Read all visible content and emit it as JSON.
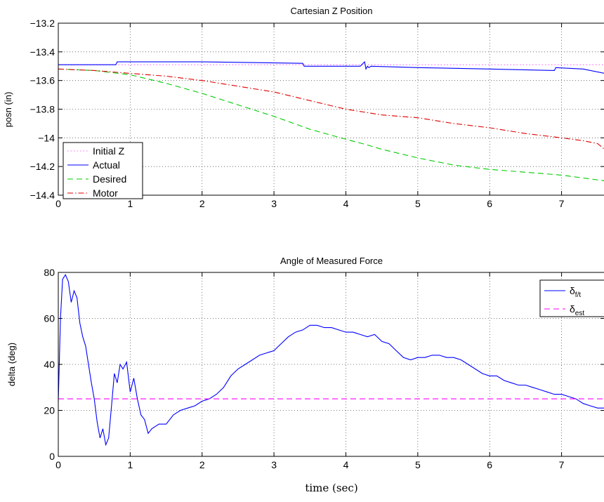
{
  "chart_data": [
    {
      "type": "line",
      "title": "Cartesian Z Position",
      "xlabel": "",
      "ylabel": "posn (in)",
      "xlim": [
        0,
        7.6
      ],
      "ylim": [
        -14.4,
        -13.2
      ],
      "xticks": [
        0,
        1,
        2,
        3,
        4,
        5,
        6,
        7
      ],
      "yticks": [
        -14.4,
        -14.2,
        -14,
        -13.8,
        -13.6,
        -13.4,
        -13.2
      ],
      "ytick_labels": [
        "−14.4",
        "−14.2",
        "−14",
        "−13.8",
        "−13.6",
        "−13.4",
        "−13.2"
      ],
      "grid": true,
      "legend": "bottom-left",
      "series": [
        {
          "name": "Initial Z",
          "color": "#ff66ff",
          "style": "dotted",
          "x": [
            0,
            7.6
          ],
          "y": [
            -13.49,
            -13.49
          ]
        },
        {
          "name": "Actual",
          "color": "#0000ff",
          "style": "solid",
          "x": [
            0,
            0.8,
            0.82,
            2.0,
            3.4,
            3.42,
            4.2,
            4.26,
            4.28,
            4.3,
            4.32,
            4.35,
            5.0,
            6.0,
            6.9,
            6.92,
            7.3,
            7.6
          ],
          "y": [
            -13.49,
            -13.49,
            -13.47,
            -13.47,
            -13.48,
            -13.5,
            -13.5,
            -13.47,
            -13.52,
            -13.5,
            -13.51,
            -13.5,
            -13.51,
            -13.52,
            -13.53,
            -13.51,
            -13.52,
            -13.55
          ]
        },
        {
          "name": "Desired",
          "color": "#00cc00",
          "style": "dashed",
          "x": [
            0,
            0.5,
            1.0,
            1.5,
            2.0,
            2.5,
            3.0,
            3.5,
            4.0,
            4.3,
            4.5,
            5.0,
            5.5,
            6.0,
            6.5,
            7.0,
            7.6
          ],
          "y": [
            -13.52,
            -13.53,
            -13.56,
            -13.62,
            -13.69,
            -13.77,
            -13.85,
            -13.94,
            -14.01,
            -14.05,
            -14.08,
            -14.14,
            -14.19,
            -14.22,
            -14.24,
            -14.26,
            -14.3
          ]
        },
        {
          "name": "Motor",
          "color": "#dd0000",
          "style": "dashdot",
          "x": [
            0,
            0.5,
            1.0,
            1.5,
            2.0,
            2.5,
            3.0,
            3.5,
            4.0,
            4.5,
            5.0,
            5.5,
            6.0,
            6.5,
            7.0,
            7.3,
            7.5,
            7.6
          ],
          "y": [
            -13.52,
            -13.53,
            -13.55,
            -13.57,
            -13.6,
            -13.64,
            -13.68,
            -13.74,
            -13.8,
            -13.84,
            -13.86,
            -13.9,
            -13.93,
            -13.97,
            -14.0,
            -14.02,
            -14.04,
            -14.08
          ]
        }
      ]
    },
    {
      "type": "line",
      "title": "Angle of Measured Force",
      "xlabel": "time (sec)",
      "ylabel": "delta (deg)",
      "xlim": [
        0,
        7.6
      ],
      "ylim": [
        0,
        80
      ],
      "xticks": [
        0,
        1,
        2,
        3,
        4,
        5,
        6,
        7
      ],
      "yticks": [
        0,
        20,
        40,
        60,
        80
      ],
      "ytick_labels": [
        "0",
        "20",
        "40",
        "60",
        "80"
      ],
      "grid": true,
      "legend": "top-right",
      "series": [
        {
          "name": "δf/t",
          "label_main": "δ",
          "label_sub": "f/t",
          "color": "#0000ff",
          "style": "solid",
          "x": [
            0,
            0.03,
            0.06,
            0.1,
            0.14,
            0.18,
            0.22,
            0.26,
            0.3,
            0.34,
            0.38,
            0.42,
            0.46,
            0.5,
            0.54,
            0.58,
            0.62,
            0.66,
            0.7,
            0.74,
            0.78,
            0.82,
            0.86,
            0.9,
            0.95,
            1.0,
            1.05,
            1.1,
            1.15,
            1.2,
            1.25,
            1.3,
            1.4,
            1.5,
            1.6,
            1.7,
            1.8,
            1.9,
            2.0,
            2.1,
            2.2,
            2.3,
            2.4,
            2.5,
            2.6,
            2.7,
            2.8,
            2.9,
            3.0,
            3.1,
            3.2,
            3.3,
            3.4,
            3.5,
            3.6,
            3.7,
            3.8,
            3.9,
            4.0,
            4.1,
            4.2,
            4.3,
            4.4,
            4.5,
            4.6,
            4.7,
            4.8,
            4.9,
            5.0,
            5.1,
            5.2,
            5.3,
            5.4,
            5.5,
            5.6,
            5.7,
            5.8,
            5.9,
            6.0,
            6.1,
            6.2,
            6.3,
            6.4,
            6.5,
            6.6,
            6.7,
            6.8,
            6.9,
            7.0,
            7.1,
            7.2,
            7.3,
            7.4,
            7.5,
            7.6
          ],
          "y": [
            24,
            60,
            77,
            79,
            76,
            67,
            72,
            69,
            58,
            52,
            48,
            40,
            32,
            25,
            15,
            8,
            12,
            5,
            8,
            22,
            36,
            32,
            40,
            38,
            41,
            28,
            34,
            25,
            18,
            16,
            10,
            12,
            14,
            14,
            18,
            20,
            21,
            22,
            24,
            25,
            27,
            30,
            35,
            38,
            40,
            42,
            44,
            45,
            46,
            49,
            52,
            54,
            55,
            57,
            57,
            56,
            56,
            55,
            54,
            54,
            53,
            52,
            53,
            50,
            49,
            46,
            43,
            42,
            43,
            43,
            44,
            44,
            43,
            43,
            42,
            40,
            38,
            36,
            35,
            35,
            33,
            32,
            31,
            31,
            30,
            29,
            28,
            27,
            27,
            26,
            25,
            23,
            22,
            21,
            21
          ]
        },
        {
          "name": "δest",
          "label_main": "δ",
          "label_sub": "est",
          "color": "#ff00ff",
          "style": "dashed",
          "x": [
            0,
            7.6
          ],
          "y": [
            25,
            25
          ]
        }
      ]
    }
  ]
}
